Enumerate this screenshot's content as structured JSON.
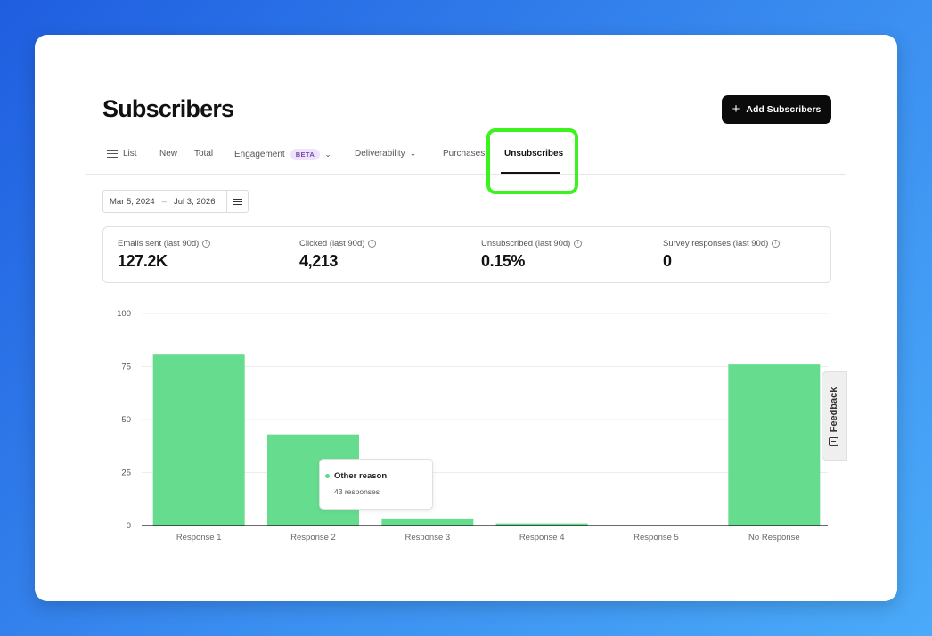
{
  "page": {
    "title": "Subscribers",
    "add_button_label": "Add Subscribers"
  },
  "tabs": [
    {
      "label": "List",
      "icon": "list-icon"
    },
    {
      "label": "New"
    },
    {
      "label": "Total"
    },
    {
      "label": "Engagement",
      "badge": "BETA",
      "icon": "chevron-down-icon"
    },
    {
      "label": "Deliverability",
      "icon": "chevron-down-icon"
    },
    {
      "label": "Purchases"
    },
    {
      "label": "Unsubscribes",
      "active": true
    }
  ],
  "date_filter": {
    "start": "Mar 5, 2024",
    "separator": "–",
    "end": "Jul 3, 2026"
  },
  "stats": [
    {
      "label": "Emails sent (last 90d)",
      "value": "127.2K"
    },
    {
      "label": "Clicked (last 90d)",
      "value": "4,213"
    },
    {
      "label": "Unsubscribed (last 90d)",
      "value": "0.15%"
    },
    {
      "label": "Survey responses (last 90d)",
      "value": "0"
    }
  ],
  "chart_data": {
    "type": "bar",
    "categories": [
      "Response 1",
      "Response 2",
      "Response 3",
      "Response 4",
      "Response 5",
      "No Response"
    ],
    "values": [
      81,
      43,
      3,
      1,
      0,
      76
    ],
    "ylim": [
      0,
      100
    ],
    "yticks": [
      0,
      25,
      50,
      75,
      100
    ],
    "grid": true,
    "bar_color": "#66dd8e"
  },
  "tooltip": {
    "name": "Other reason",
    "value_text": "43 responses"
  },
  "feedback": {
    "label": "Feedback"
  },
  "colors": {
    "highlight": "#3cf21f",
    "bar": "#66dd8e",
    "primary_button": "#0b0b0b"
  }
}
